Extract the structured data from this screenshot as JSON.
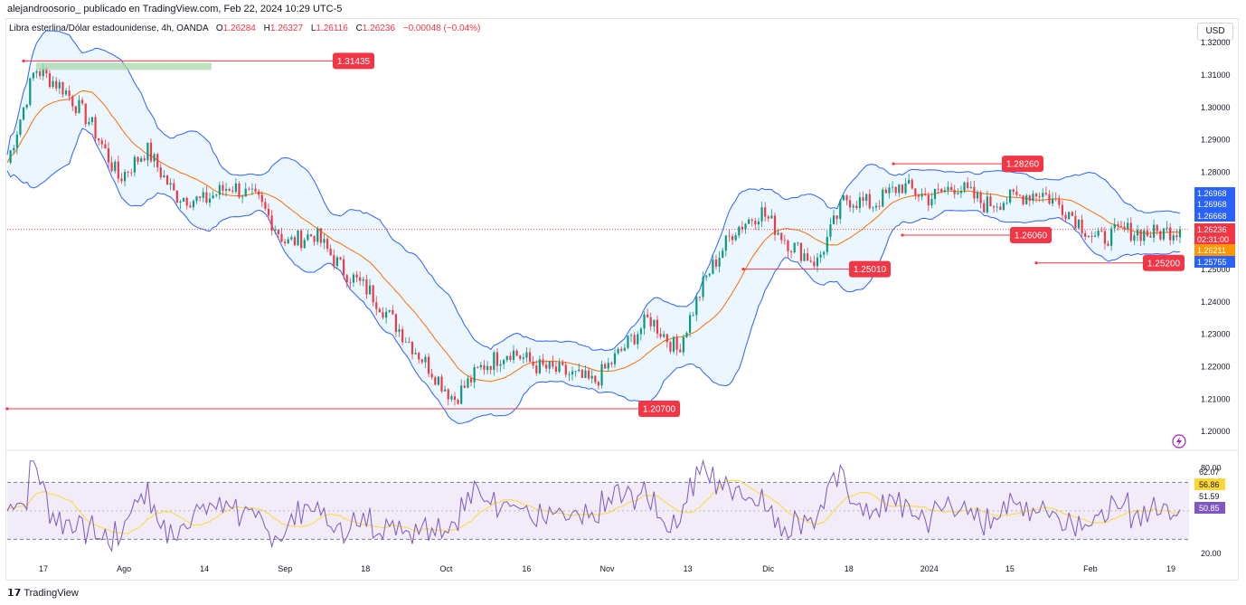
{
  "header": {
    "caption": "alejandroosorio_ publicado en TradingView.com, Feb 22, 2024 10:29 UTC-5"
  },
  "legend": {
    "symbol": "Libra esterlina/Dólar estadounidense, 4h, OANDA",
    "open_label": "O",
    "open": "1.26284",
    "high_label": "H",
    "high": "1.26327",
    "low_label": "L",
    "low": "1.26116",
    "close_label": "C",
    "close": "1.26236",
    "change": "−0.00048 (−0.04%)"
  },
  "currency": "USD",
  "footer": {
    "brand": "TradingView",
    "logo": "tradingview-logo-icon"
  },
  "colors": {
    "bull": "#089981",
    "bear": "#f23645",
    "band": "#2962ff",
    "band_fill": "#e3f2fd",
    "basis": "#ff6d00",
    "rsi": "#7e57c2",
    "rsi_ma": "#fdd835",
    "level": "#f23645"
  },
  "chart_data": [
    {
      "type": "candlestick",
      "name": "GBP/USD 4h",
      "indicators": [
        "Bollinger Bands",
        "moving average"
      ],
      "ylim": [
        1.195,
        1.322
      ],
      "y_ticks": [
        "1.20000",
        "1.21000",
        "1.22000",
        "1.23000",
        "1.24000",
        "1.25000",
        "1.26000",
        "1.27000",
        "1.28000",
        "1.29000",
        "1.30000",
        "1.31000",
        "1.32000"
      ],
      "x_ticks": [
        "17",
        "Ago",
        "14",
        "Sep",
        "18",
        "Oct",
        "16",
        "Nov",
        "13",
        "Dic",
        "18",
        "2024",
        "15",
        "Feb",
        "19"
      ],
      "close_path": [
        [
          "17",
          1.283
        ],
        [
          "",
          1.312
        ],
        [
          "",
          1.306
        ],
        [
          "",
          1.295
        ],
        [
          "Ago",
          1.278
        ],
        [
          "",
          1.287
        ],
        [
          "",
          1.273
        ],
        [
          "14",
          1.271
        ],
        [
          "",
          1.276
        ],
        [
          "",
          1.271
        ],
        [
          "Sep",
          1.258
        ],
        [
          "",
          1.261
        ],
        [
          "",
          1.25
        ],
        [
          "18",
          1.243
        ],
        [
          "",
          1.232
        ],
        [
          "",
          1.221
        ],
        [
          "Oct",
          1.21
        ],
        [
          "",
          1.22
        ],
        [
          "",
          1.225
        ],
        [
          "16",
          1.22
        ],
        [
          "",
          1.218
        ],
        [
          "",
          1.215
        ],
        [
          "Nov",
          1.225
        ],
        [
          "",
          1.235
        ],
        [
          "13",
          1.225
        ],
        [
          "",
          1.247
        ],
        [
          "",
          1.262
        ],
        [
          "Dic",
          1.268
        ],
        [
          "",
          1.258
        ],
        [
          "",
          1.252
        ],
        [
          "18",
          1.272
        ],
        [
          "",
          1.27
        ],
        [
          "",
          1.276
        ],
        [
          "2024",
          1.272
        ],
        [
          "",
          1.276
        ],
        [
          "15",
          1.27
        ],
        [
          "",
          1.272
        ],
        [
          "",
          1.274
        ],
        [
          "Feb",
          1.268
        ],
        [
          "",
          1.259
        ],
        [
          "",
          1.262
        ],
        [
          "19",
          1.261
        ],
        [
          "",
          1.26236
        ]
      ],
      "price_labels": [
        {
          "value": "1.26968"
        },
        {
          "value": "1.26968"
        },
        {
          "value": "1.26668"
        },
        {
          "value": "1.26236"
        },
        {
          "value": "02:31:00"
        },
        {
          "value": "1.26211"
        },
        {
          "value": "1.25755"
        }
      ],
      "levels": [
        {
          "label": "1.31435",
          "value": 1.31435
        },
        {
          "label": "1.28260",
          "value": 1.2826
        },
        {
          "label": "1.26060",
          "value": 1.2606
        },
        {
          "label": "1.25010",
          "value": 1.2501
        },
        {
          "label": "1.25200",
          "value": 1.252
        },
        {
          "label": "1.20700",
          "value": 1.207
        }
      ]
    },
    {
      "type": "line",
      "name": "RSI",
      "ylim": [
        15,
        88
      ],
      "y_ticks": [
        "80.00",
        "20.00"
      ],
      "band": [
        30,
        70
      ],
      "badges": [
        "62.07",
        "56.86",
        "51.59",
        "50.85"
      ]
    }
  ]
}
